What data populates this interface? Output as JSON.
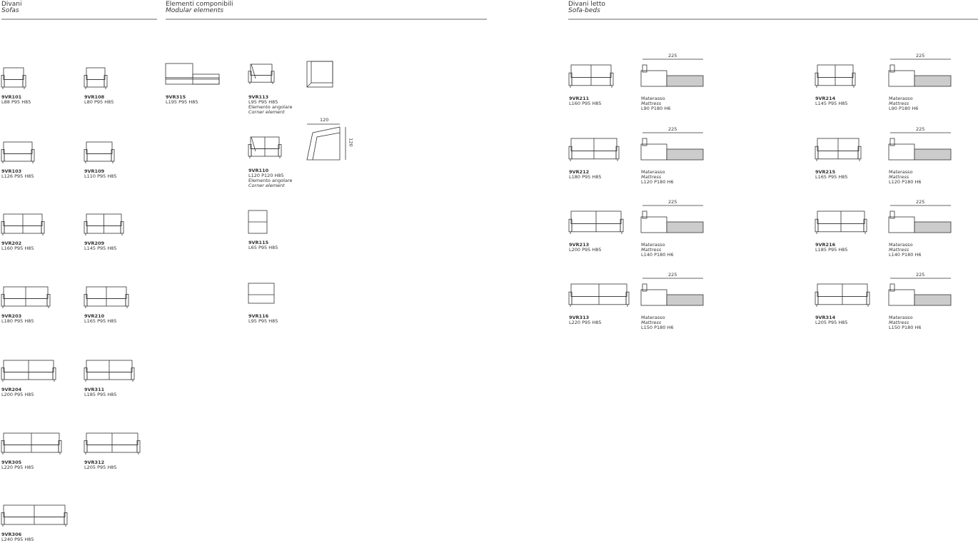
{
  "sections": [
    {
      "title": "Divani",
      "subtitle": "Sofas",
      "items": [
        {
          "code": "9VR101",
          "dims": "L88 P95 H85"
        },
        {
          "code": "9VR103",
          "dims": "L126 P95 H85"
        },
        {
          "code": "9VR202",
          "dims": "L160 P95 H85"
        },
        {
          "code": "9VR203",
          "dims": "L180 P95 H85"
        },
        {
          "code": "9VR204",
          "dims": "L200 P95 H85"
        },
        {
          "code": "9VR305",
          "dims": "L220 P95 H85"
        },
        {
          "code": "9VR306",
          "dims": "L240 P95 H85"
        },
        {
          "code": "9VR108",
          "dims": "L80 P95 H85"
        },
        {
          "code": "9VR109",
          "dims": "L110 P95 H85"
        },
        {
          "code": "9VR209",
          "dims": "L145 P95 H85"
        },
        {
          "code": "9VR210",
          "dims": "L165 P95 H85"
        },
        {
          "code": "9VR311",
          "dims": "L185 P95 H85"
        },
        {
          "code": "9VR312",
          "dims": "L205 P95 H85"
        }
      ]
    },
    {
      "title": "Elementi componibili",
      "subtitle": "Modular elements",
      "items": [
        {
          "code": "9VR315",
          "dims": "L195 P95 H85"
        },
        {
          "code": "9VR113",
          "dims": "L95 P95 H85",
          "note": "Elemento angolare",
          "note_en": "Corner element"
        },
        {
          "code": "9VR110",
          "dims": "L120 P120 H85",
          "note": "Elemento angolare",
          "note_en": "Corner element",
          "plan_width": "120",
          "plan_depth": "120"
        },
        {
          "code": "9VR115",
          "dims": "L65 P95 H85"
        },
        {
          "code": "9VR116",
          "dims": "L95 P95 H85"
        }
      ]
    },
    {
      "title": "Divani letto",
      "subtitle": "Sofa-beds",
      "items": [
        {
          "code": "9VR211",
          "dims": "L160 P95 H85",
          "open": "225",
          "mattress": "Materasso",
          "mattress_en": "Mattress",
          "mattress_dims": "L90 P180 H6"
        },
        {
          "code": "9VR212",
          "dims": "L180 P95 H85",
          "open": "225",
          "mattress": "Materasso",
          "mattress_en": "Mattress",
          "mattress_dims": "L120 P180 H6"
        },
        {
          "code": "9VR213",
          "dims": "L200 P95 H85",
          "open": "225",
          "mattress": "Materasso",
          "mattress_en": "Mattress",
          "mattress_dims": "L140 P180 H6"
        },
        {
          "code": "9VR313",
          "dims": "L220 P95 H85",
          "open": "225",
          "mattress": "Materasso",
          "mattress_en": "Mattress",
          "mattress_dims": "L150 P180 H6"
        },
        {
          "code": "9VR214",
          "dims": "L145 P95 H85",
          "open": "225",
          "mattress": "Materasso",
          "mattress_en": "Mattress",
          "mattress_dims": "L90 P180 H6"
        },
        {
          "code": "9VR215",
          "dims": "L165 P95 H85",
          "open": "225",
          "mattress": "Materasso",
          "mattress_en": "Mattress",
          "mattress_dims": "L120 P180 H6"
        },
        {
          "code": "9VR216",
          "dims": "L185 P95 H85",
          "open": "225",
          "mattress": "Materasso",
          "mattress_en": "Mattress",
          "mattress_dims": "L140 P180 H6"
        },
        {
          "code": "9VR314",
          "dims": "L205 P95 H85",
          "open": "225",
          "mattress": "Materasso",
          "mattress_en": "Mattress",
          "mattress_dims": "L150 P180 H6"
        }
      ]
    }
  ]
}
